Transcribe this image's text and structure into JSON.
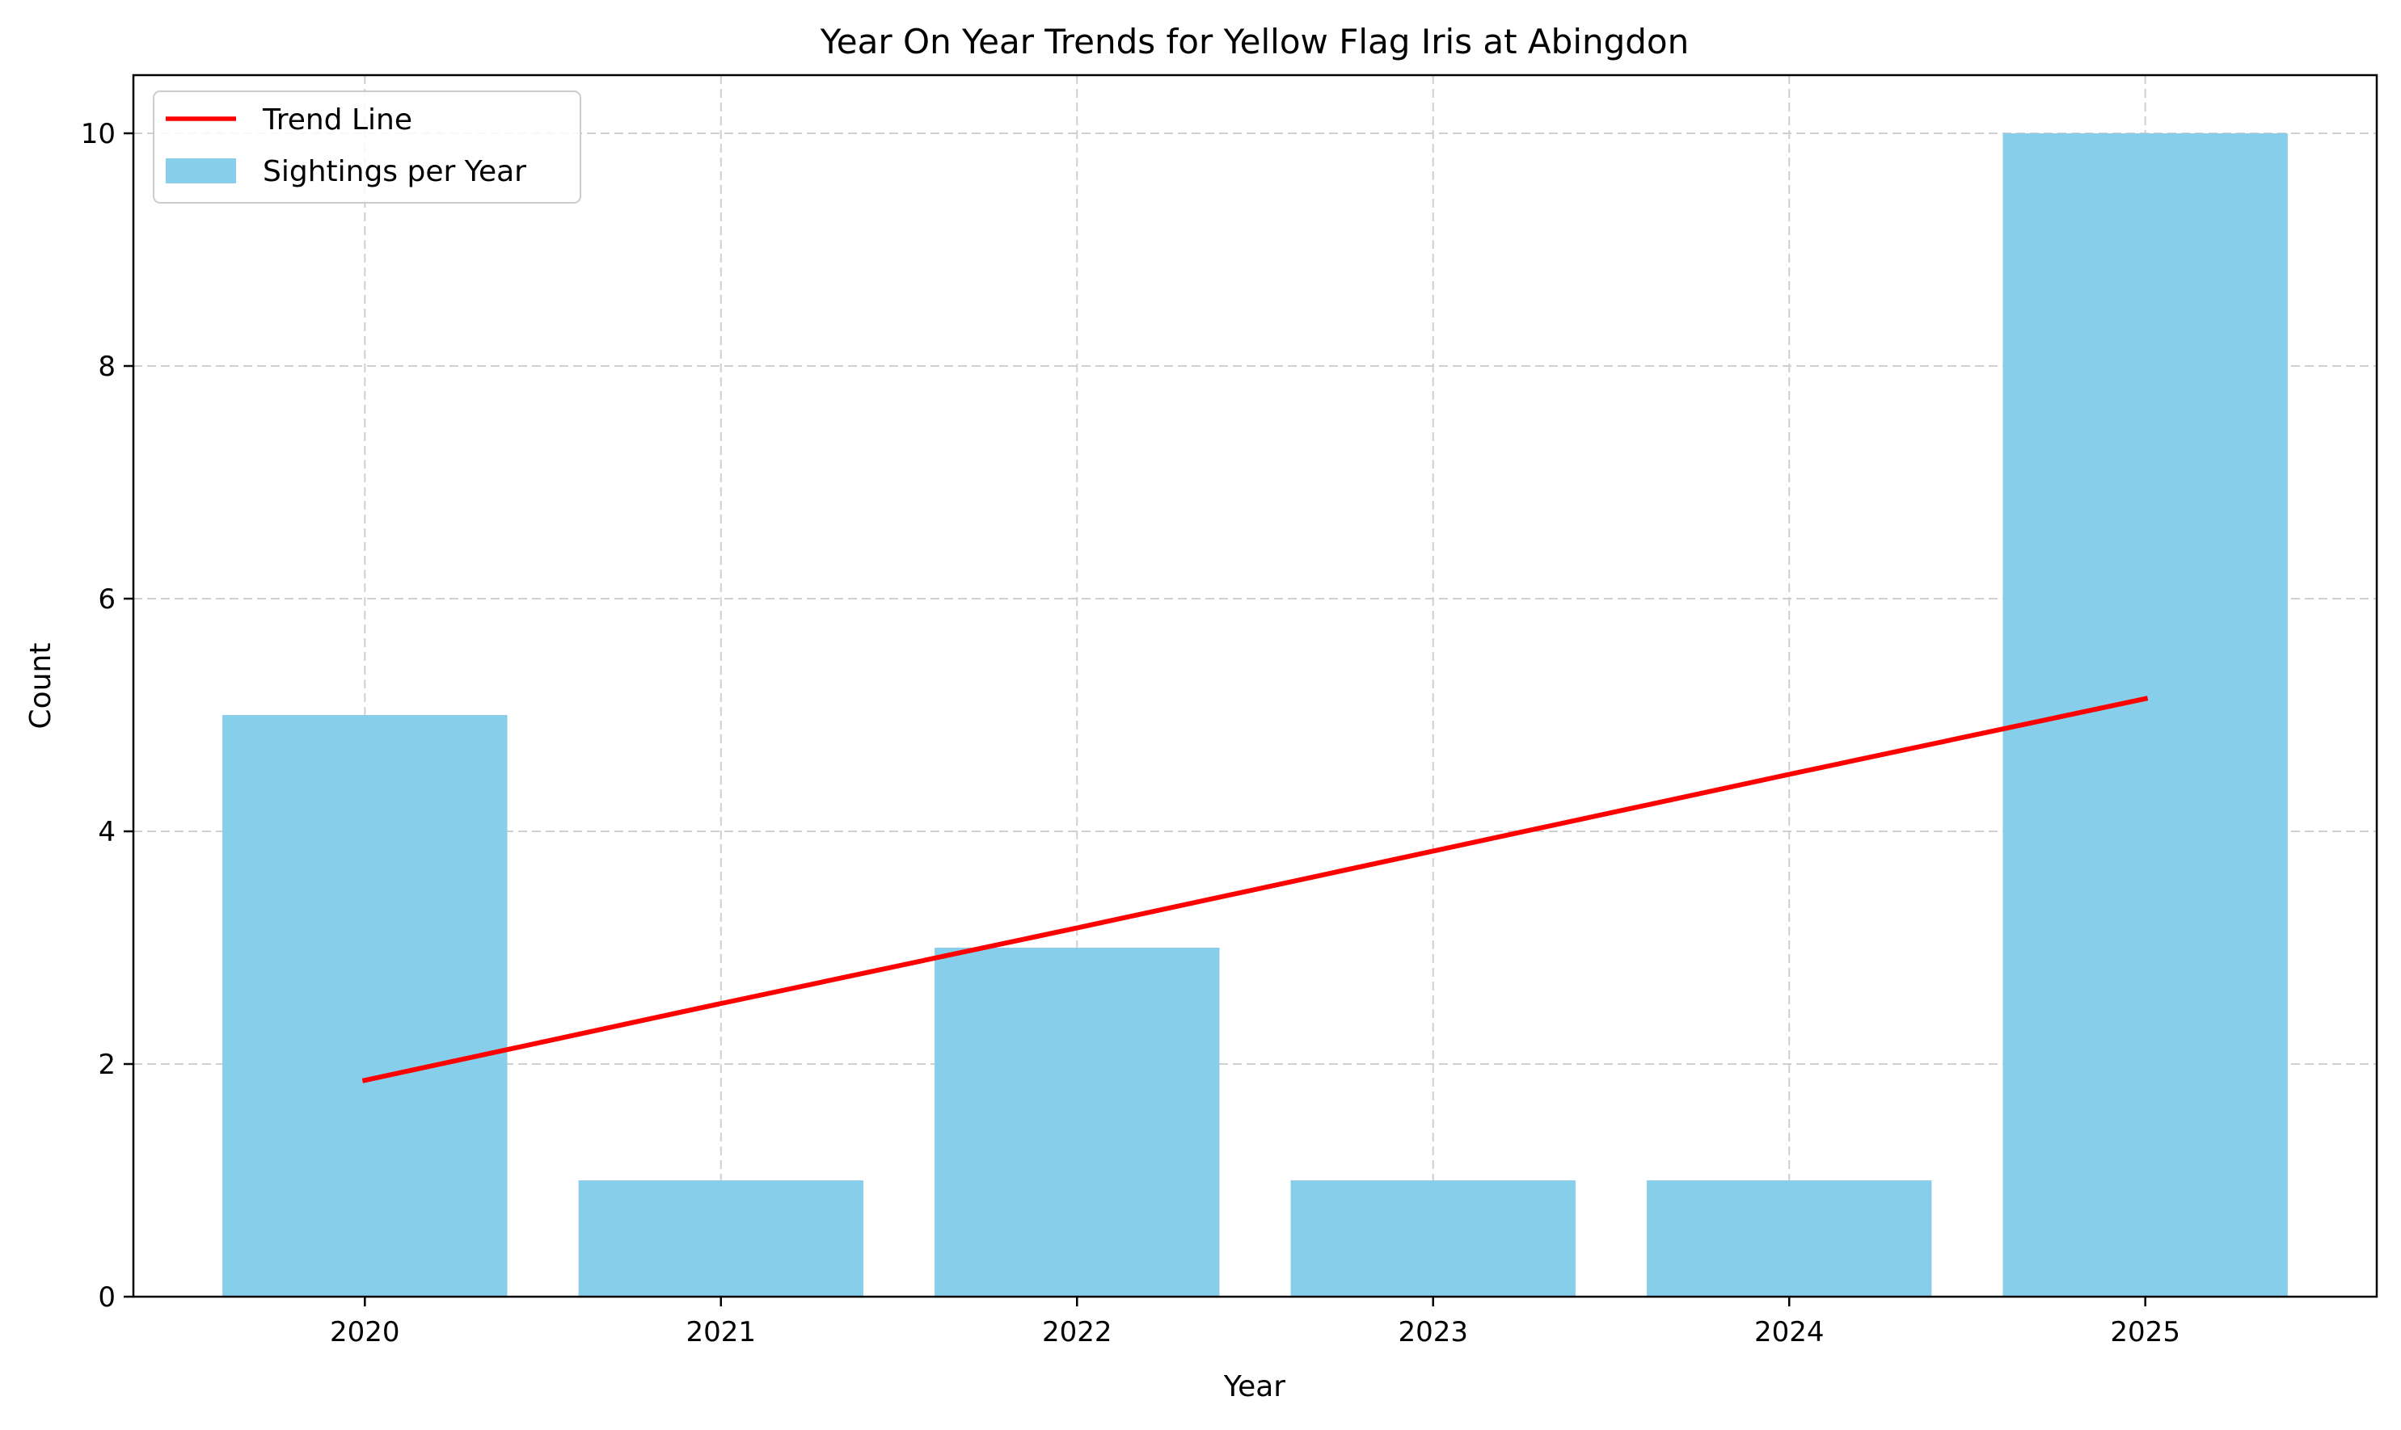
{
  "chart_data": {
    "type": "bar",
    "title": "Year On Year Trends for Yellow Flag Iris at Abingdon",
    "xlabel": "Year",
    "ylabel": "Count",
    "categories": [
      "2020",
      "2021",
      "2022",
      "2023",
      "2024",
      "2025"
    ],
    "series": [
      {
        "name": "Sightings per Year",
        "type": "bar",
        "values": [
          5,
          1,
          3,
          1,
          1,
          10
        ],
        "color": "#87CEEB"
      },
      {
        "name": "Trend Line",
        "type": "line",
        "values": [
          1.86,
          2.52,
          3.17,
          3.83,
          4.49,
          5.14
        ],
        "color": "#FF0000"
      }
    ],
    "ylim": [
      0,
      10.5
    ],
    "yticks": [
      0,
      2,
      4,
      6,
      8,
      10
    ],
    "grid": true,
    "legend": {
      "placement": "top-left",
      "entries": [
        "Trend Line",
        "Sightings per Year"
      ]
    }
  }
}
